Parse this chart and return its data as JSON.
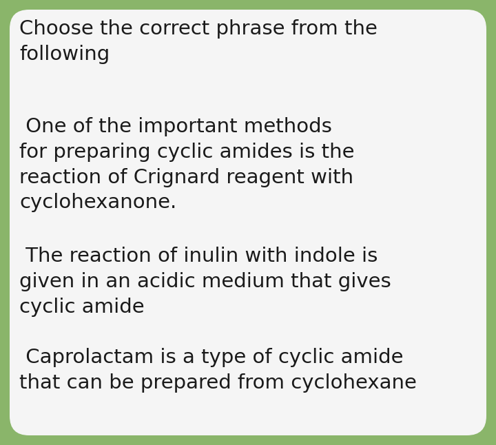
{
  "background_color": "#8ab56a",
  "card_color": "#f5f5f5",
  "text_color": "#1a1a1a",
  "title": "Choose the correct phrase from the\nfollowing",
  "options": [
    " One of the important methods\nfor preparing cyclic amides is the\nreaction of Crignard reagent with\ncyclohexanone.",
    " The reaction of inulin with indole is\ngiven in an acidic medium that gives\ncyclic amide",
    " Caprolactam is a type of cyclic amide\nthat can be prepared from cyclohexane"
  ],
  "title_fontsize": 21,
  "option_fontsize": 21,
  "fig_width": 7.2,
  "fig_height": 6.46
}
